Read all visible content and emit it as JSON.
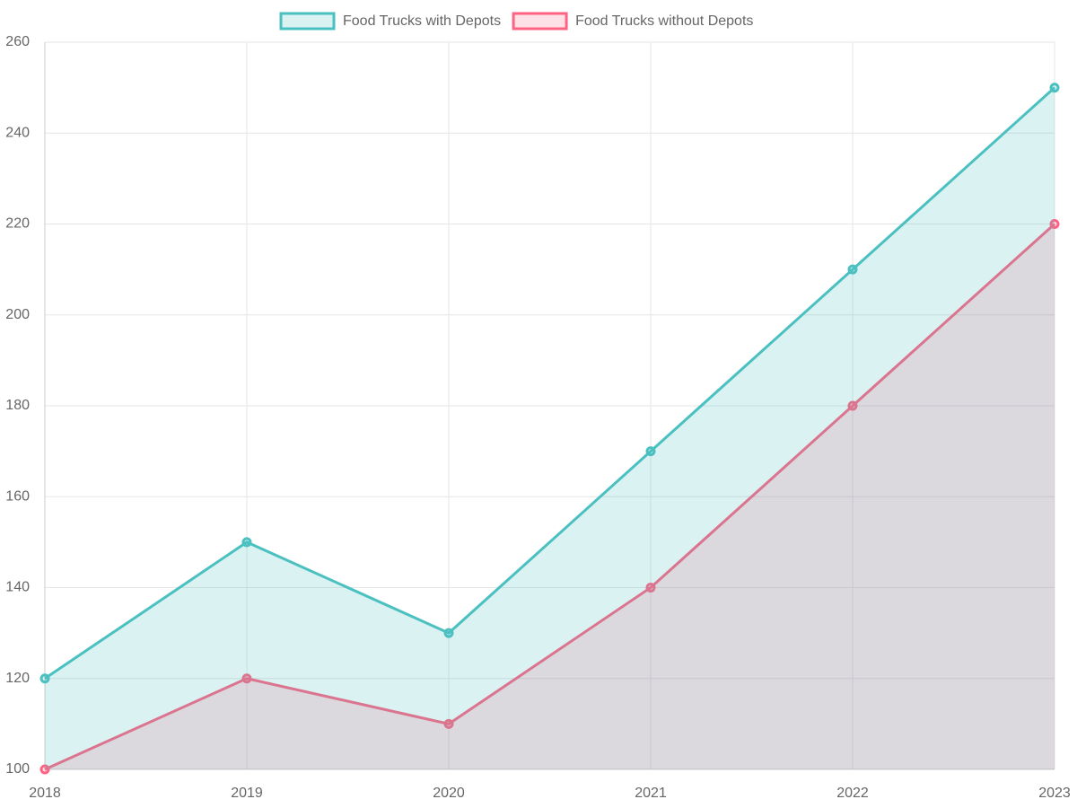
{
  "chart_data": {
    "type": "line",
    "categories": [
      "2018",
      "2019",
      "2020",
      "2021",
      "2022",
      "2023"
    ],
    "series": [
      {
        "name": "Food Trucks with Depots",
        "color": "#4bc0c0",
        "values": [
          120,
          150,
          130,
          170,
          210,
          250
        ]
      },
      {
        "name": "Food Trucks without Depots",
        "color": "#ff6384",
        "values": [
          100,
          120,
          110,
          140,
          180,
          220
        ]
      }
    ],
    "fill": true,
    "ylim": [
      100,
      260
    ],
    "yticks": [
      100,
      120,
      140,
      160,
      180,
      200,
      220,
      240,
      260
    ],
    "grid": true,
    "legend": "top"
  }
}
